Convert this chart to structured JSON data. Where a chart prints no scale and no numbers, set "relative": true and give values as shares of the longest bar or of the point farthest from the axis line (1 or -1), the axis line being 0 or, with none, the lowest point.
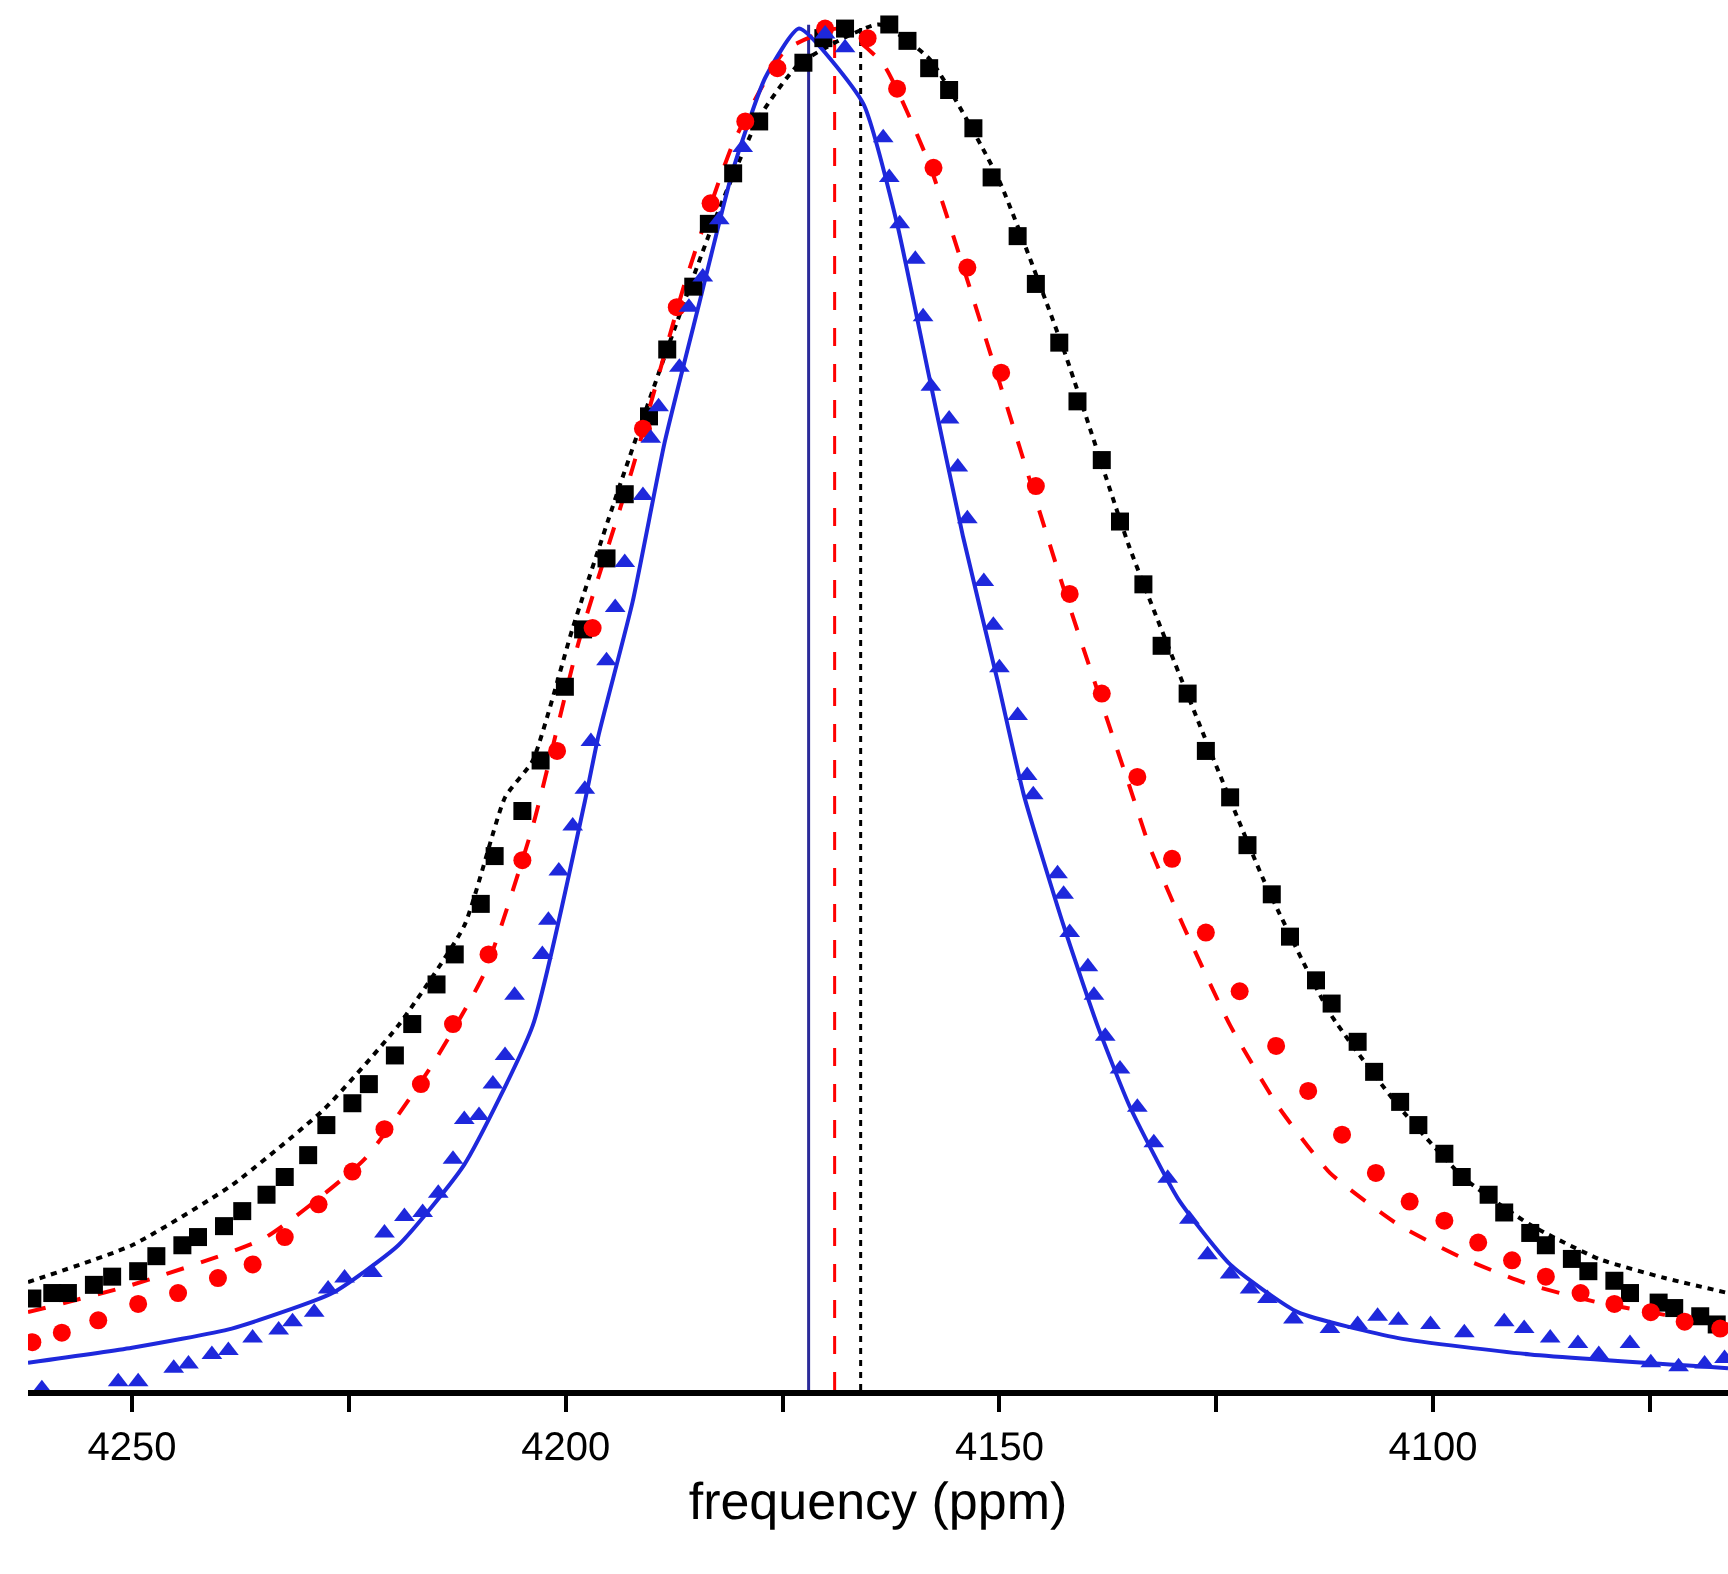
{
  "chart_data": {
    "type": "scatter",
    "xlabel": "frequency (ppm)",
    "relative": true,
    "xlim": [
      4262,
      4066
    ],
    "xticks": [
      4250,
      {
        "value": 4225,
        "label": null
      },
      4200,
      {
        "value": 4175,
        "label": null
      },
      4150,
      {
        "value": 4125,
        "label": null
      },
      4100,
      {
        "value": 4075,
        "label": null
      }
    ],
    "grid": false,
    "ref_lines": [
      {
        "axis": "x",
        "value": 4172,
        "color": "#2b2b9a",
        "line_style": "solid"
      },
      {
        "axis": "x",
        "value": 4169,
        "color": "#ff0000",
        "line_style": "dashed"
      },
      {
        "axis": "x",
        "value": 4166,
        "color": "#000000",
        "line_style": "dotted"
      }
    ],
    "series": [
      {
        "type": "line",
        "color": "#000000",
        "line_style": "dotted",
        "x": [
          4262.0,
          4250,
          4238.5,
          4227.8,
          4219.3,
          4211.7,
          4207.0,
          4203.8,
          4199.2,
          4193.9,
          4188.6,
          4183.0,
          4177.7,
          4173.1,
          4163.9,
          4158.1,
          4150.2,
          4142.6,
          4135.0,
          4127.1,
          4119.5,
          4111.9,
          4104.0,
          4096.4,
          4088.8,
          4080.9,
          4073.3,
          4066.0
        ],
        "values": [
          0.079,
          0.106,
          0.15,
          0.206,
          0.267,
          0.34,
          0.434,
          0.461,
          0.558,
          0.66,
          0.757,
          0.854,
          0.932,
          0.971,
          1.0,
          0.975,
          0.888,
          0.762,
          0.617,
          0.49,
          0.373,
          0.276,
          0.208,
          0.155,
          0.121,
          0.096,
          0.082,
          0.071
        ]
      },
      {
        "type": "line",
        "color": "#ff0000",
        "line_style": "dashed",
        "x": [
          4262.0,
          4250,
          4234.8,
          4223.2,
          4215.4,
          4209.4,
          4203.8,
          4198.5,
          4192.3,
          4186.3,
          4180.7,
          4174.7,
          4168.5,
          4163.4,
          4158.1,
          4150.2,
          4142.6,
          4135.0,
          4132.7,
          4128.8,
          4123.4,
          4117.9,
          4111.9,
          4104.0,
          4096.4,
          4088.8,
          4080.9,
          4073.3,
          4066.0
        ],
        "values": [
          0.057,
          0.077,
          0.111,
          0.169,
          0.238,
          0.305,
          0.413,
          0.548,
          0.675,
          0.81,
          0.913,
          0.981,
          0.997,
          0.971,
          0.898,
          0.742,
          0.587,
          0.442,
          0.398,
          0.34,
          0.267,
          0.208,
          0.159,
          0.121,
          0.096,
          0.077,
          0.064,
          0.055,
          0.048
        ]
      },
      {
        "type": "line",
        "color": "#1e28dc",
        "line_style": "solid",
        "x": [
          4262.0,
          4250,
          4238.5,
          4226.9,
          4219.3,
          4211.7,
          4203.8,
          4197.8,
          4196.2,
          4192.3,
          4188.6,
          4184.6,
          4180.7,
          4177.0,
          4173.1,
          4165.7,
          4161.8,
          4158.1,
          4154.2,
          4150.2,
          4147.2,
          4142.6,
          4138.7,
          4135.0,
          4129.4,
          4123.4,
          4115.6,
          4104.0,
          4088.8,
          4066.0
        ],
        "values": [
          0.02,
          0.031,
          0.045,
          0.071,
          0.106,
          0.165,
          0.267,
          0.431,
          0.48,
          0.577,
          0.694,
          0.796,
          0.894,
          0.961,
          0.997,
          0.942,
          0.854,
          0.742,
          0.625,
          0.519,
          0.436,
          0.34,
          0.267,
          0.208,
          0.14,
          0.092,
          0.057,
          0.038,
          0.026,
          0.016
        ]
      },
      {
        "color": "#000000",
        "marker": "square",
        "x": [
          4261.5,
          4259.2,
          4257.4,
          4254.4,
          4252.3,
          4249.3,
          4247.2,
          4244.2,
          4242.4,
          4239.4,
          4237.3,
          4234.5,
          4232.4,
          4229.7,
          4227.6,
          4224.6,
          4222.7,
          4219.7,
          4217.7,
          4214.9,
          4212.8,
          4209.8,
          4208.2,
          4205.0,
          4202.9,
          4200.1,
          4198.0,
          4195.3,
          4193.2,
          4190.4,
          4188.3,
          4185.3,
          4183.5,
          4180.7,
          4177.7,
          4172.6,
          4170.3,
          4167.8,
          4162.7,
          4160.6,
          4158.1,
          4155.8,
          4153.0,
          4150.9,
          4147.9,
          4145.8,
          4143.1,
          4141.0,
          4138.2,
          4136.1,
          4133.4,
          4131.3,
          4128.3,
          4126.2,
          4123.4,
          4121.4,
          4118.6,
          4116.5,
          4113.5,
          4111.7,
          4108.7,
          4106.8,
          4103.8,
          4101.7,
          4098.7,
          4096.7,
          4093.6,
          4091.8,
          4088.8,
          4087.0,
          4084.0,
          4082.1,
          4079.1,
          4077.3,
          4074.0,
          4072.2,
          4069.2,
          4067.3
        ],
        "values": [
          0.067,
          0.071,
          0.071,
          0.077,
          0.083,
          0.087,
          0.098,
          0.106,
          0.112,
          0.12,
          0.131,
          0.143,
          0.156,
          0.172,
          0.194,
          0.21,
          0.224,
          0.245,
          0.268,
          0.297,
          0.319,
          0.356,
          0.391,
          0.424,
          0.461,
          0.515,
          0.557,
          0.609,
          0.656,
          0.713,
          0.762,
          0.808,
          0.854,
          0.891,
          0.929,
          0.972,
          0.99,
          0.997,
          1.0,
          0.988,
          0.968,
          0.952,
          0.924,
          0.888,
          0.845,
          0.81,
          0.767,
          0.724,
          0.681,
          0.636,
          0.59,
          0.545,
          0.51,
          0.468,
          0.434,
          0.399,
          0.363,
          0.332,
          0.3,
          0.283,
          0.255,
          0.233,
          0.211,
          0.194,
          0.173,
          0.156,
          0.143,
          0.13,
          0.115,
          0.106,
          0.096,
          0.087,
          0.08,
          0.071,
          0.064,
          0.06,
          0.054,
          0.048
        ]
      },
      {
        "color": "#ff0000",
        "marker": "circle",
        "x": [
          4261.5,
          4258.1,
          4253.9,
          4249.3,
          4244.7,
          4240.1,
          4236.1,
          4232.4,
          4228.5,
          4224.6,
          4220.9,
          4216.7,
          4213.0,
          4208.9,
          4205.0,
          4201.0,
          4196.9,
          4191.1,
          4187.2,
          4183.3,
          4179.3,
          4175.6,
          4170.1,
          4165.2,
          4161.8,
          4157.6,
          4153.7,
          4149.8,
          4145.8,
          4141.9,
          4138.2,
          4134.1,
          4130.1,
          4126.2,
          4122.3,
          4118.1,
          4114.4,
          4110.5,
          4106.6,
          4102.7,
          4098.7,
          4094.8,
          4090.9,
          4087.0,
          4083.0,
          4079.1,
          4074.9,
          4071.0,
          4066.9
        ],
        "values": [
          0.035,
          0.042,
          0.051,
          0.063,
          0.071,
          0.082,
          0.092,
          0.112,
          0.136,
          0.16,
          0.191,
          0.224,
          0.268,
          0.319,
          0.388,
          0.468,
          0.558,
          0.704,
          0.793,
          0.869,
          0.929,
          0.968,
          0.997,
          0.99,
          0.953,
          0.895,
          0.822,
          0.745,
          0.662,
          0.583,
          0.51,
          0.449,
          0.389,
          0.335,
          0.292,
          0.252,
          0.219,
          0.187,
          0.159,
          0.138,
          0.124,
          0.108,
          0.095,
          0.083,
          0.071,
          0.063,
          0.057,
          0.05,
          0.045
        ]
      },
      {
        "color": "#1e28dc",
        "marker": "triangle",
        "x": [
          4260.4,
          4251.6,
          4249.3,
          4245.2,
          4243.5,
          4240.8,
          4238.9,
          4236.1,
          4233.1,
          4231.5,
          4229.0,
          4227.4,
          4225.5,
          4222.3,
          4220.9,
          4218.6,
          4216.5,
          4214.7,
          4213.0,
          4211.7,
          4210.0,
          4208.4,
          4207.0,
          4205.9,
          4202.7,
          4202.0,
          4200.8,
          4199.2,
          4197.8,
          4197.1,
          4195.3,
          4194.3,
          4193.2,
          4191.1,
          4190.2,
          4189.3,
          4186.9,
          4185.8,
          4184.2,
          4182.3,
          4179.6,
          4170.1,
          4167.8,
          4163.4,
          4162.7,
          4161.5,
          4159.7,
          4158.8,
          4157.9,
          4155.8,
          4154.8,
          4153.7,
          4151.8,
          4150.7,
          4150.0,
          4147.9,
          4146.8,
          4146.1,
          4143.3,
          4142.6,
          4141.9,
          4139.8,
          4139.1,
          4137.8,
          4136.1,
          4134.1,
          4132.2,
          4130.6,
          4128.1,
          4126.0,
          4123.4,
          4121.1,
          4119.1,
          4116.1,
          4111.9,
          4108.7,
          4106.4,
          4104.0,
          4100.3,
          4096.4,
          4091.8,
          4089.5,
          4086.5,
          4083.3,
          4080.9,
          4077.3,
          4074.9,
          4071.7,
          4068.7,
          4066.4
        ],
        "values": [
          0.001,
          0.006,
          0.006,
          0.016,
          0.019,
          0.026,
          0.029,
          0.038,
          0.044,
          0.05,
          0.057,
          0.074,
          0.082,
          0.086,
          0.115,
          0.127,
          0.13,
          0.144,
          0.169,
          0.198,
          0.201,
          0.224,
          0.245,
          0.289,
          0.319,
          0.344,
          0.38,
          0.413,
          0.44,
          0.475,
          0.534,
          0.573,
          0.606,
          0.655,
          0.697,
          0.72,
          0.749,
          0.793,
          0.815,
          0.857,
          0.91,
          0.993,
          0.983,
          0.917,
          0.888,
          0.854,
          0.828,
          0.786,
          0.735,
          0.711,
          0.676,
          0.638,
          0.592,
          0.56,
          0.529,
          0.494,
          0.45,
          0.436,
          0.378,
          0.363,
          0.335,
          0.31,
          0.289,
          0.259,
          0.235,
          0.207,
          0.181,
          0.155,
          0.125,
          0.099,
          0.085,
          0.074,
          0.067,
          0.052,
          0.045,
          0.048,
          0.054,
          0.051,
          0.048,
          0.042,
          0.05,
          0.045,
          0.038,
          0.034,
          0.026,
          0.034,
          0.02,
          0.017,
          0.019,
          0.023
        ]
      }
    ]
  }
}
